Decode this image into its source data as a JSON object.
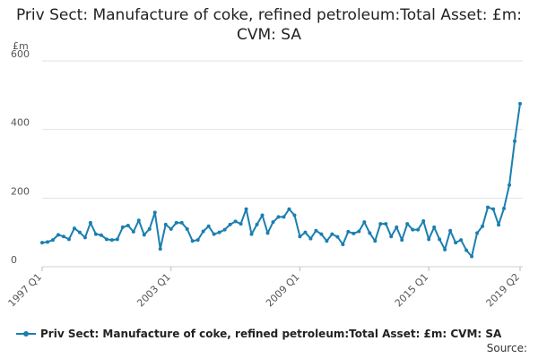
{
  "chart_data": {
    "type": "line",
    "title": "Priv Sect: Manufacture of coke, refined petroleum:Total Asset: £m: CVM: SA",
    "unit_label": "£m",
    "ylim": [
      0,
      600
    ],
    "y_ticks": [
      "0",
      "200",
      "400",
      "600"
    ],
    "x_tick_labels": [
      "1997 Q1",
      "2003 Q1",
      "2009 Q1",
      "2015 Q1",
      "2019 Q2"
    ],
    "x_tick_indices": [
      0,
      24,
      48,
      72,
      89
    ],
    "grid": true,
    "legend_position": "bottom",
    "series": [
      {
        "name": "Priv Sect: Manufacture of coke, refined petroleum:Total Asset: £m: CVM: SA",
        "color": "#1a7fb0",
        "x": [
          "1997 Q1",
          "1997 Q2",
          "1997 Q3",
          "1997 Q4",
          "1998 Q1",
          "1998 Q2",
          "1998 Q3",
          "1998 Q4",
          "1999 Q1",
          "1999 Q2",
          "1999 Q3",
          "1999 Q4",
          "2000 Q1",
          "2000 Q2",
          "2000 Q3",
          "2000 Q4",
          "2001 Q1",
          "2001 Q2",
          "2001 Q3",
          "2001 Q4",
          "2002 Q1",
          "2002 Q2",
          "2002 Q3",
          "2002 Q4",
          "2003 Q1",
          "2003 Q2",
          "2003 Q3",
          "2003 Q4",
          "2004 Q1",
          "2004 Q2",
          "2004 Q3",
          "2004 Q4",
          "2005 Q1",
          "2005 Q2",
          "2005 Q3",
          "2005 Q4",
          "2006 Q1",
          "2006 Q2",
          "2006 Q3",
          "2006 Q4",
          "2007 Q1",
          "2007 Q2",
          "2007 Q3",
          "2007 Q4",
          "2008 Q1",
          "2008 Q2",
          "2008 Q3",
          "2008 Q4",
          "2009 Q1",
          "2009 Q2",
          "2009 Q3",
          "2009 Q4",
          "2010 Q1",
          "2010 Q2",
          "2010 Q3",
          "2010 Q4",
          "2011 Q1",
          "2011 Q2",
          "2011 Q3",
          "2011 Q4",
          "2012 Q1",
          "2012 Q2",
          "2012 Q3",
          "2012 Q4",
          "2013 Q1",
          "2013 Q2",
          "2013 Q3",
          "2013 Q4",
          "2014 Q1",
          "2014 Q2",
          "2014 Q3",
          "2014 Q4",
          "2015 Q1",
          "2015 Q2",
          "2015 Q3",
          "2015 Q4",
          "2016 Q1",
          "2016 Q2",
          "2016 Q3",
          "2016 Q4",
          "2017 Q1",
          "2017 Q2",
          "2017 Q3",
          "2017 Q4",
          "2018 Q1",
          "2018 Q2",
          "2018 Q3",
          "2018 Q4",
          "2019 Q1",
          "2019 Q2"
        ],
        "values": [
          70,
          72,
          78,
          93,
          88,
          80,
          112,
          100,
          85,
          128,
          95,
          92,
          80,
          78,
          80,
          115,
          120,
          102,
          135,
          93,
          110,
          158,
          52,
          123,
          110,
          128,
          128,
          110,
          75,
          78,
          103,
          118,
          95,
          100,
          108,
          123,
          132,
          125,
          168,
          95,
          123,
          150,
          98,
          130,
          145,
          145,
          168,
          150,
          88,
          100,
          82,
          105,
          95,
          75,
          95,
          87,
          65,
          102,
          97,
          103,
          130,
          98,
          75,
          125,
          125,
          88,
          115,
          78,
          125,
          108,
          108,
          133,
          80,
          115,
          80,
          50,
          105,
          70,
          78,
          48,
          30,
          98,
          118,
          173,
          168,
          122,
          170,
          238,
          366,
          475
        ]
      }
    ]
  },
  "source_label": "Source:"
}
